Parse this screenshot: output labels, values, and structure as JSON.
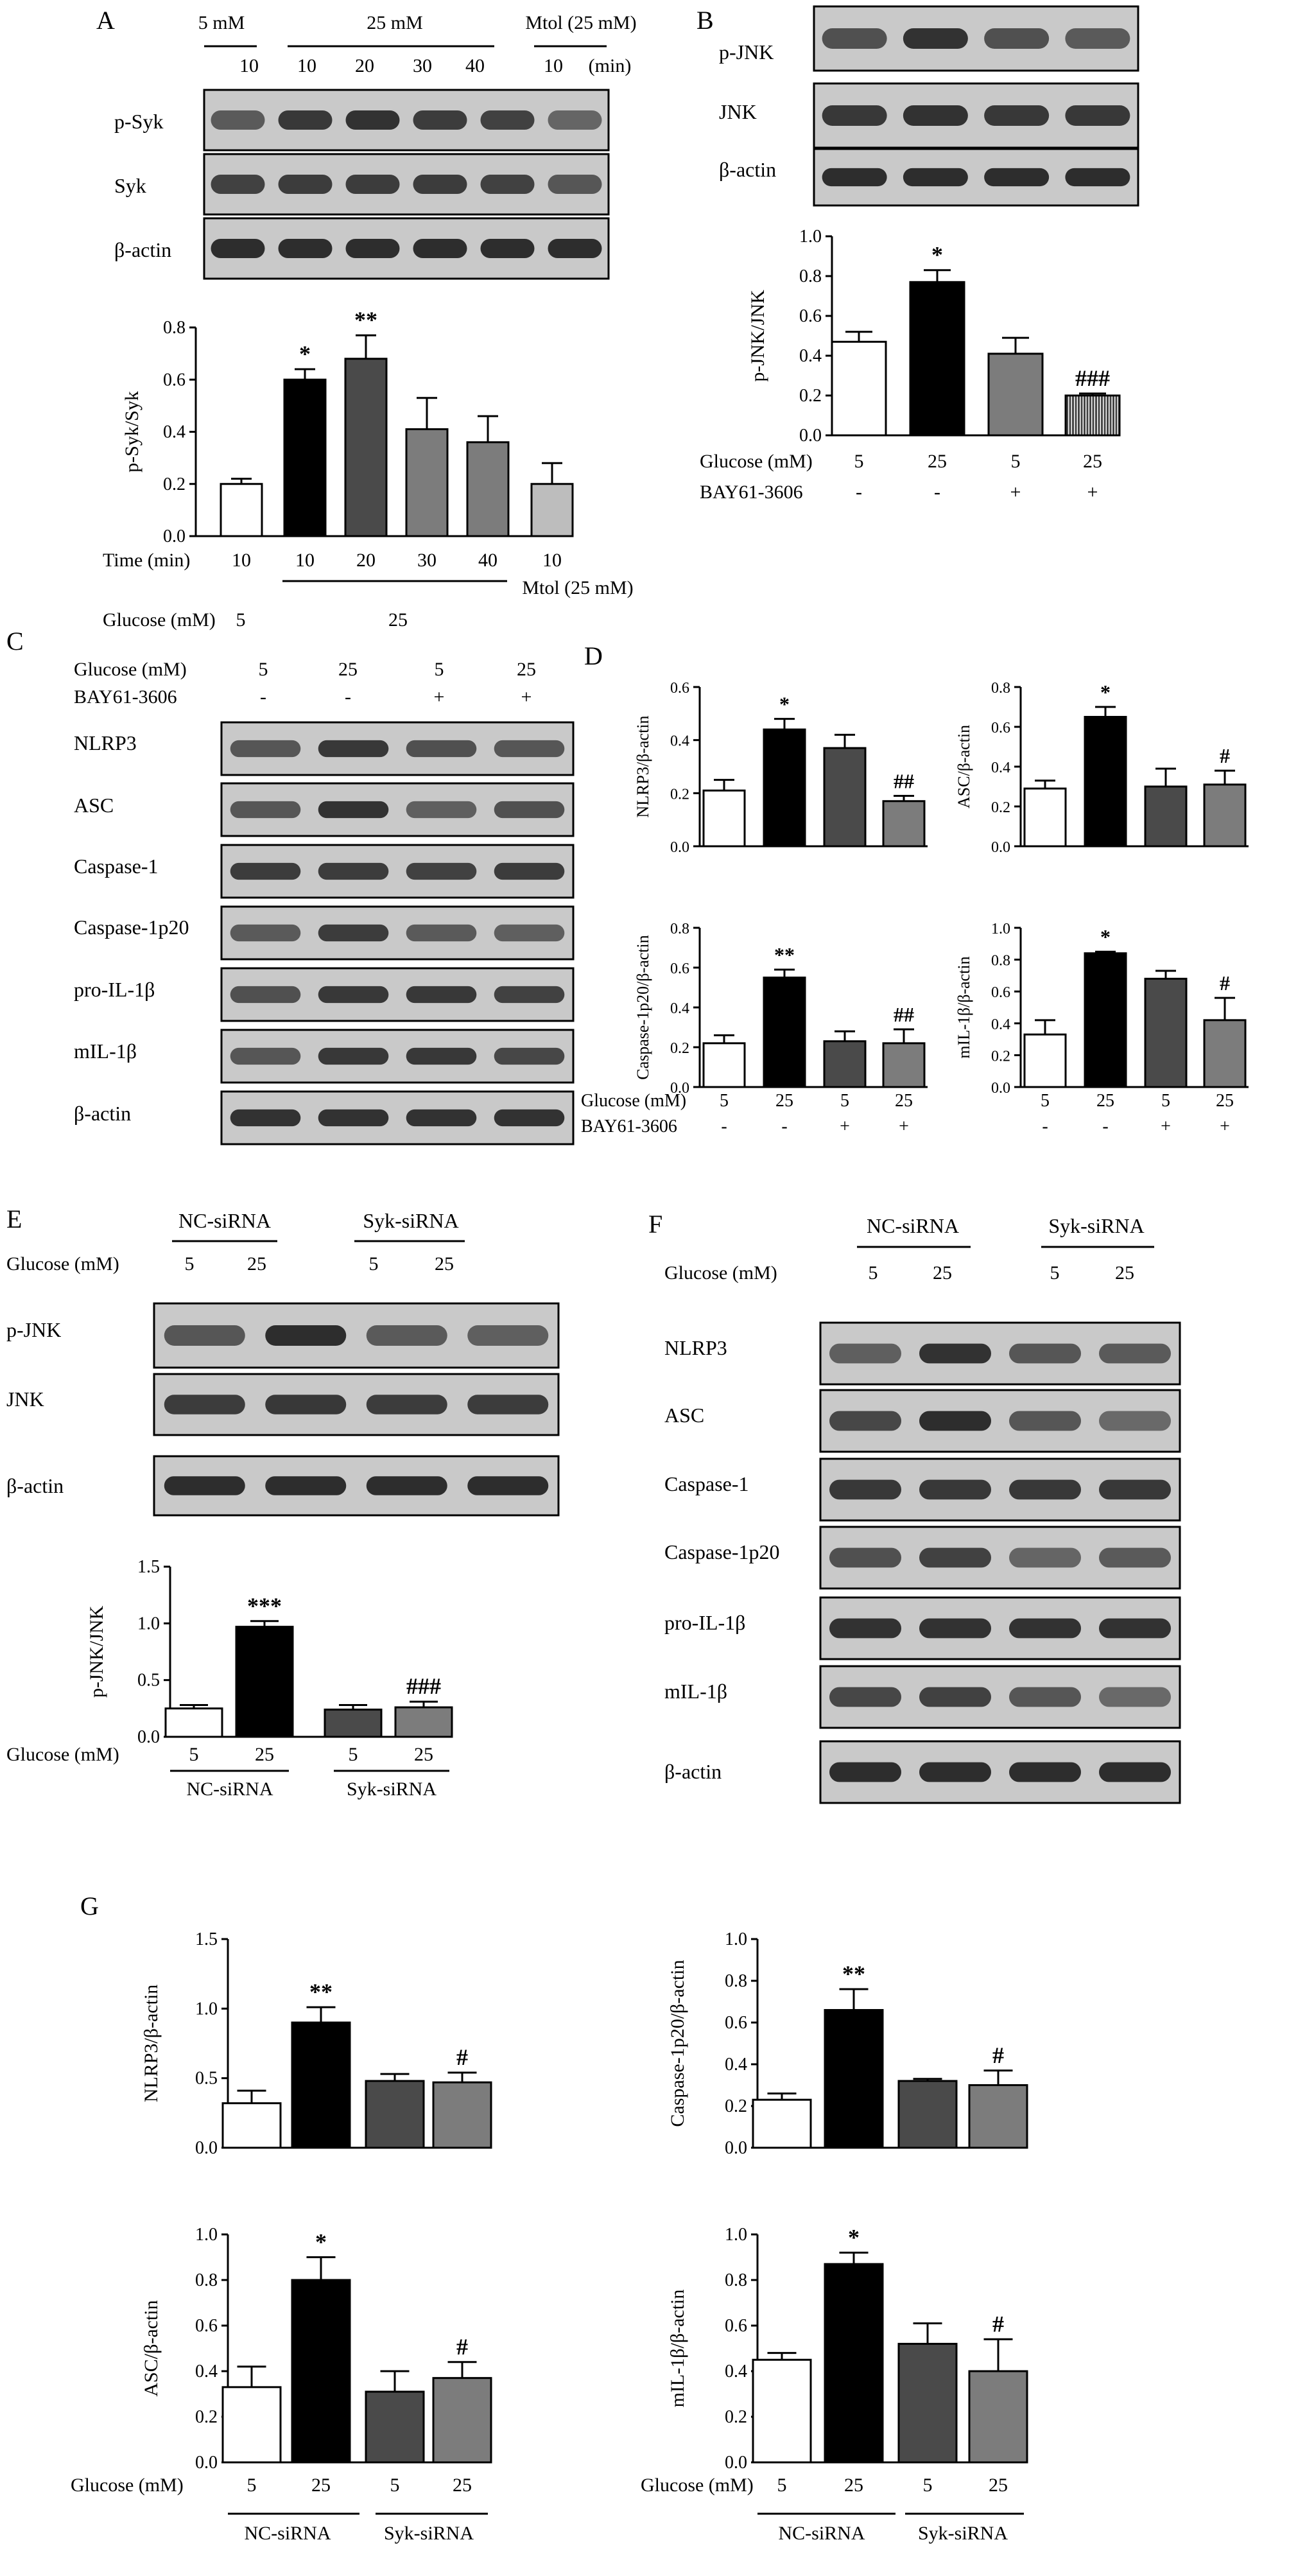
{
  "colors": {
    "white": "#ffffff",
    "black": "#000000",
    "dark_gray": "#4a4a4a",
    "mid_gray": "#7c7c7c",
    "light_gray": "#bdbdbd",
    "hatch": "#6a6a6a",
    "blot_bg": "#c9c9c9",
    "band": "#1f1f1f"
  },
  "panel_labels": [
    "A",
    "B",
    "C",
    "D",
    "E",
    "F",
    "G"
  ],
  "panels": {
    "A": {
      "blot": {
        "header": {
          "g1": "5 mM",
          "g2": "25 mM",
          "g3": "Mtol (25 mM)",
          "times": [
            "10",
            "10",
            "20",
            "30",
            "40",
            "10"
          ],
          "unit": "(min)"
        },
        "rows": [
          "p-Syk",
          "Syk",
          "β-actin"
        ]
      },
      "chart": {
        "ylabel": "p-Syk/Syk",
        "row1_label": "Time (min)",
        "row1": [
          "10",
          "10",
          "20",
          "30",
          "40",
          "10"
        ],
        "row1_extra": "Mtol (25 mM)",
        "row2_label": "Glucose (mM)",
        "row2_5": "5",
        "row2_25": "25"
      }
    },
    "B": {
      "blot_rows": [
        "p-JNK",
        "JNK",
        "β-actin"
      ],
      "chart": {
        "ylabel": "p-JNK/JNK",
        "row1_label": "Glucose (mM)",
        "row1": [
          "5",
          "25",
          "5",
          "25"
        ],
        "row2_label": "BAY61-3606",
        "row2": [
          "-",
          "-",
          "+",
          "+"
        ]
      }
    },
    "C": {
      "header": {
        "glucose_label": "Glucose (mM)",
        "glucose": [
          "5",
          "25",
          "5",
          "25"
        ],
        "bay_label": "BAY61-3606",
        "bay": [
          "-",
          "-",
          "+",
          "+"
        ]
      },
      "rows": [
        "NLRP3",
        "ASC",
        "Caspase-1",
        "Caspase-1p20",
        "pro-IL-1β",
        "mIL-1β",
        "β-actin"
      ]
    },
    "D": {
      "row1_label": "Glucose (mM)",
      "row1": [
        "5",
        "25",
        "5",
        "25"
      ],
      "row2_label": "BAY61-3606",
      "row2": [
        "-",
        "-",
        "+",
        "+"
      ]
    },
    "E": {
      "header": {
        "nc": "NC-siRNA",
        "syk": "Syk-siRNA",
        "glucose_label": "Glucose (mM)",
        "glucose": [
          "5",
          "25",
          "5",
          "25"
        ]
      },
      "blot_rows": [
        "p-JNK",
        "JNK",
        "β-actin"
      ],
      "chart": {
        "ylabel": "p-JNK/JNK",
        "row1_label": "Glucose (mM)",
        "row1": [
          "5",
          "25",
          "5",
          "25"
        ],
        "group1": "NC-siRNA",
        "group2": "Syk-siRNA"
      }
    },
    "F": {
      "header": {
        "nc": "NC-siRNA",
        "syk": "Syk-siRNA",
        "glucose_label": "Glucose (mM)",
        "glucose": [
          "5",
          "25",
          "5",
          "25"
        ]
      },
      "rows": [
        "NLRP3",
        "ASC",
        "Caspase-1",
        "Caspase-1p20",
        "pro-IL-1β",
        "mIL-1β",
        "β-actin"
      ]
    },
    "G": {
      "row1_label": "Glucose (mM)",
      "row1": [
        "5",
        "25",
        "5",
        "25"
      ],
      "group1": "NC-siRNA",
      "group2": "Syk-siRNA"
    }
  },
  "chart_data": [
    {
      "id": "A",
      "type": "bar",
      "ylabel": "p-Syk/Syk",
      "ylim": [
        0,
        0.8
      ],
      "yticks": [
        "0.0",
        "0.2",
        "0.4",
        "0.6",
        "0.8"
      ],
      "categories": [
        "10",
        "10",
        "20",
        "30",
        "40",
        "10"
      ],
      "values": [
        0.2,
        0.6,
        0.68,
        0.41,
        0.36,
        0.2
      ],
      "errors": [
        0.02,
        0.04,
        0.09,
        0.12,
        0.1,
        0.08
      ],
      "annotations": [
        "",
        "*",
        "**",
        "",
        "",
        ""
      ]
    },
    {
      "id": "B",
      "type": "bar",
      "ylabel": "p-JNK/JNK",
      "ylim": [
        0,
        1.0
      ],
      "yticks": [
        "0.0",
        "0.2",
        "0.4",
        "0.6",
        "0.8",
        "1.0"
      ],
      "categories": [
        "5",
        "25",
        "5",
        "25"
      ],
      "values": [
        0.47,
        0.77,
        0.41,
        0.2
      ],
      "errors": [
        0.05,
        0.06,
        0.08,
        0.01
      ],
      "annotations": [
        "",
        "*",
        "",
        "###"
      ]
    },
    {
      "id": "D1",
      "type": "bar",
      "ylabel": "NLRP3/β-actin",
      "ylim": [
        0,
        0.6
      ],
      "yticks": [
        "0.0",
        "0.2",
        "0.4",
        "0.6"
      ],
      "categories": [
        "5",
        "25",
        "5",
        "25"
      ],
      "values": [
        0.21,
        0.44,
        0.37,
        0.17
      ],
      "errors": [
        0.04,
        0.04,
        0.05,
        0.02
      ],
      "annotations": [
        "",
        "*",
        "",
        "##"
      ]
    },
    {
      "id": "D2",
      "type": "bar",
      "ylabel": "ASC/β-actin",
      "ylim": [
        0,
        0.8
      ],
      "yticks": [
        "0.0",
        "0.2",
        "0.4",
        "0.6",
        "0.8"
      ],
      "categories": [
        "5",
        "25",
        "5",
        "25"
      ],
      "values": [
        0.29,
        0.65,
        0.3,
        0.31
      ],
      "errors": [
        0.04,
        0.05,
        0.09,
        0.07
      ],
      "annotations": [
        "",
        "*",
        "",
        "#"
      ]
    },
    {
      "id": "D3",
      "type": "bar",
      "ylabel": "Caspase-1p20/β-actin",
      "ylim": [
        0,
        0.8
      ],
      "yticks": [
        "0.0",
        "0.2",
        "0.4",
        "0.6",
        "0.8"
      ],
      "categories": [
        "5",
        "25",
        "5",
        "25"
      ],
      "values": [
        0.22,
        0.55,
        0.23,
        0.22
      ],
      "errors": [
        0.04,
        0.04,
        0.05,
        0.07
      ],
      "annotations": [
        "",
        "**",
        "",
        "##"
      ]
    },
    {
      "id": "D4",
      "type": "bar",
      "ylabel": "mIL-1β/β-actin",
      "ylim": [
        0,
        1.0
      ],
      "yticks": [
        "0.0",
        "0.2",
        "0.4",
        "0.6",
        "0.8",
        "1.0"
      ],
      "categories": [
        "5",
        "25",
        "5",
        "25"
      ],
      "values": [
        0.33,
        0.84,
        0.68,
        0.42
      ],
      "errors": [
        0.09,
        0.01,
        0.05,
        0.14
      ],
      "annotations": [
        "",
        "*",
        "",
        "#"
      ]
    },
    {
      "id": "E",
      "type": "bar",
      "ylabel": "p-JNK/JNK",
      "ylim": [
        0,
        1.5
      ],
      "yticks": [
        "0.0",
        "0.5",
        "1.0",
        "1.5"
      ],
      "categories": [
        "5",
        "25",
        "5",
        "25"
      ],
      "values": [
        0.25,
        0.97,
        0.24,
        0.26
      ],
      "errors": [
        0.03,
        0.05,
        0.04,
        0.05
      ],
      "annotations": [
        "",
        "***",
        "",
        "###"
      ]
    },
    {
      "id": "G1",
      "type": "bar",
      "ylabel": "NLRP3/β-actin",
      "ylim": [
        0,
        1.5
      ],
      "yticks": [
        "0.0",
        "0.5",
        "1.0",
        "1.5"
      ],
      "categories": [
        "5",
        "25",
        "5",
        "25"
      ],
      "values": [
        0.32,
        0.9,
        0.48,
        0.47
      ],
      "errors": [
        0.09,
        0.11,
        0.05,
        0.07
      ],
      "annotations": [
        "",
        "**",
        "",
        "#"
      ]
    },
    {
      "id": "G2",
      "type": "bar",
      "ylabel": "Caspase-1p20/β-actin",
      "ylim": [
        0,
        1.0
      ],
      "yticks": [
        "0.0",
        "0.2",
        "0.4",
        "0.6",
        "0.8",
        "1.0"
      ],
      "categories": [
        "5",
        "25",
        "5",
        "25"
      ],
      "values": [
        0.23,
        0.66,
        0.32,
        0.3
      ],
      "errors": [
        0.03,
        0.1,
        0.01,
        0.07
      ],
      "annotations": [
        "",
        "**",
        "",
        "#"
      ]
    },
    {
      "id": "G3",
      "type": "bar",
      "ylabel": "ASC/β-actin",
      "ylim": [
        0,
        1.0
      ],
      "yticks": [
        "0.0",
        "0.2",
        "0.4",
        "0.6",
        "0.8",
        "1.0"
      ],
      "categories": [
        "5",
        "25",
        "5",
        "25"
      ],
      "values": [
        0.33,
        0.8,
        0.31,
        0.37
      ],
      "errors": [
        0.09,
        0.1,
        0.09,
        0.07
      ],
      "annotations": [
        "",
        "*",
        "",
        "#"
      ]
    },
    {
      "id": "G4",
      "type": "bar",
      "ylabel": "mIL-1β/β-actin",
      "ylim": [
        0,
        1.0
      ],
      "yticks": [
        "0.0",
        "0.2",
        "0.4",
        "0.6",
        "0.8",
        "1.0"
      ],
      "categories": [
        "5",
        "25",
        "5",
        "25"
      ],
      "values": [
        0.45,
        0.87,
        0.52,
        0.4
      ],
      "errors": [
        0.03,
        0.05,
        0.09,
        0.14
      ],
      "annotations": [
        "",
        "*",
        "",
        "#"
      ]
    }
  ]
}
